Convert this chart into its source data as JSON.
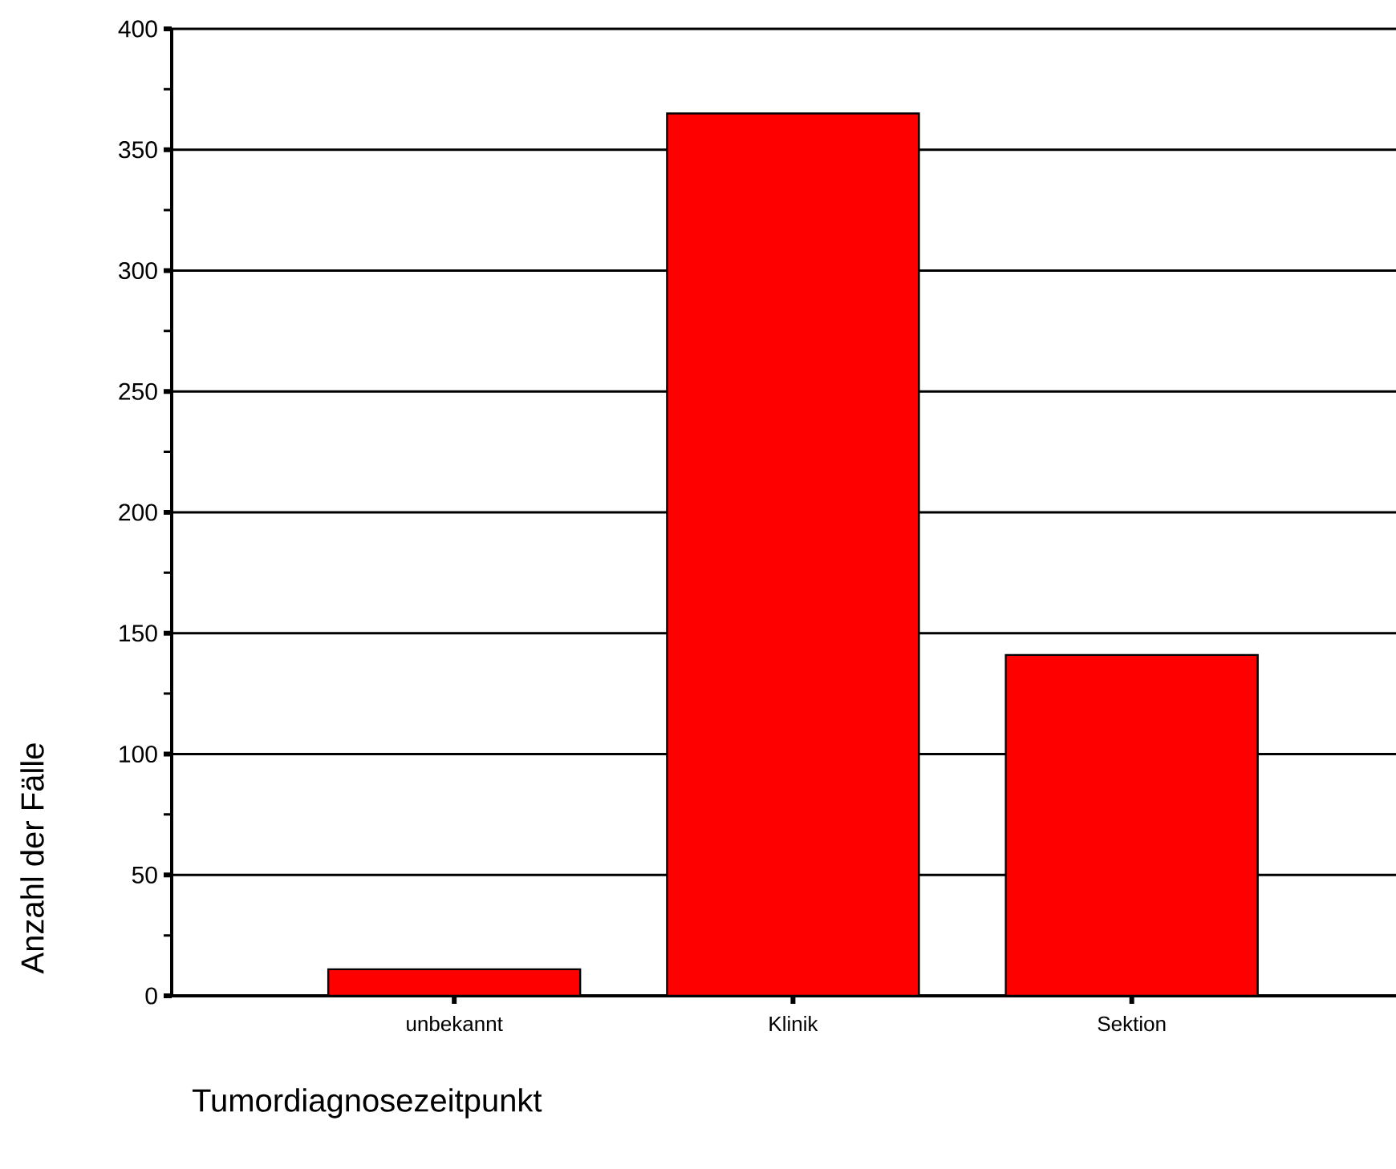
{
  "chart_data": {
    "type": "bar",
    "xlabel": "Tumordiagnosezeitpunkt",
    "ylabel": "Anzahl der Fälle",
    "categories": [
      "unbekannt",
      "Klinik",
      "Sektion"
    ],
    "values": [
      11,
      365,
      141
    ],
    "color": "#ff0000",
    "ylim": [
      0,
      400
    ],
    "yticks": [
      0,
      50,
      100,
      150,
      200,
      250,
      300,
      350,
      400
    ],
    "grid": "y"
  }
}
